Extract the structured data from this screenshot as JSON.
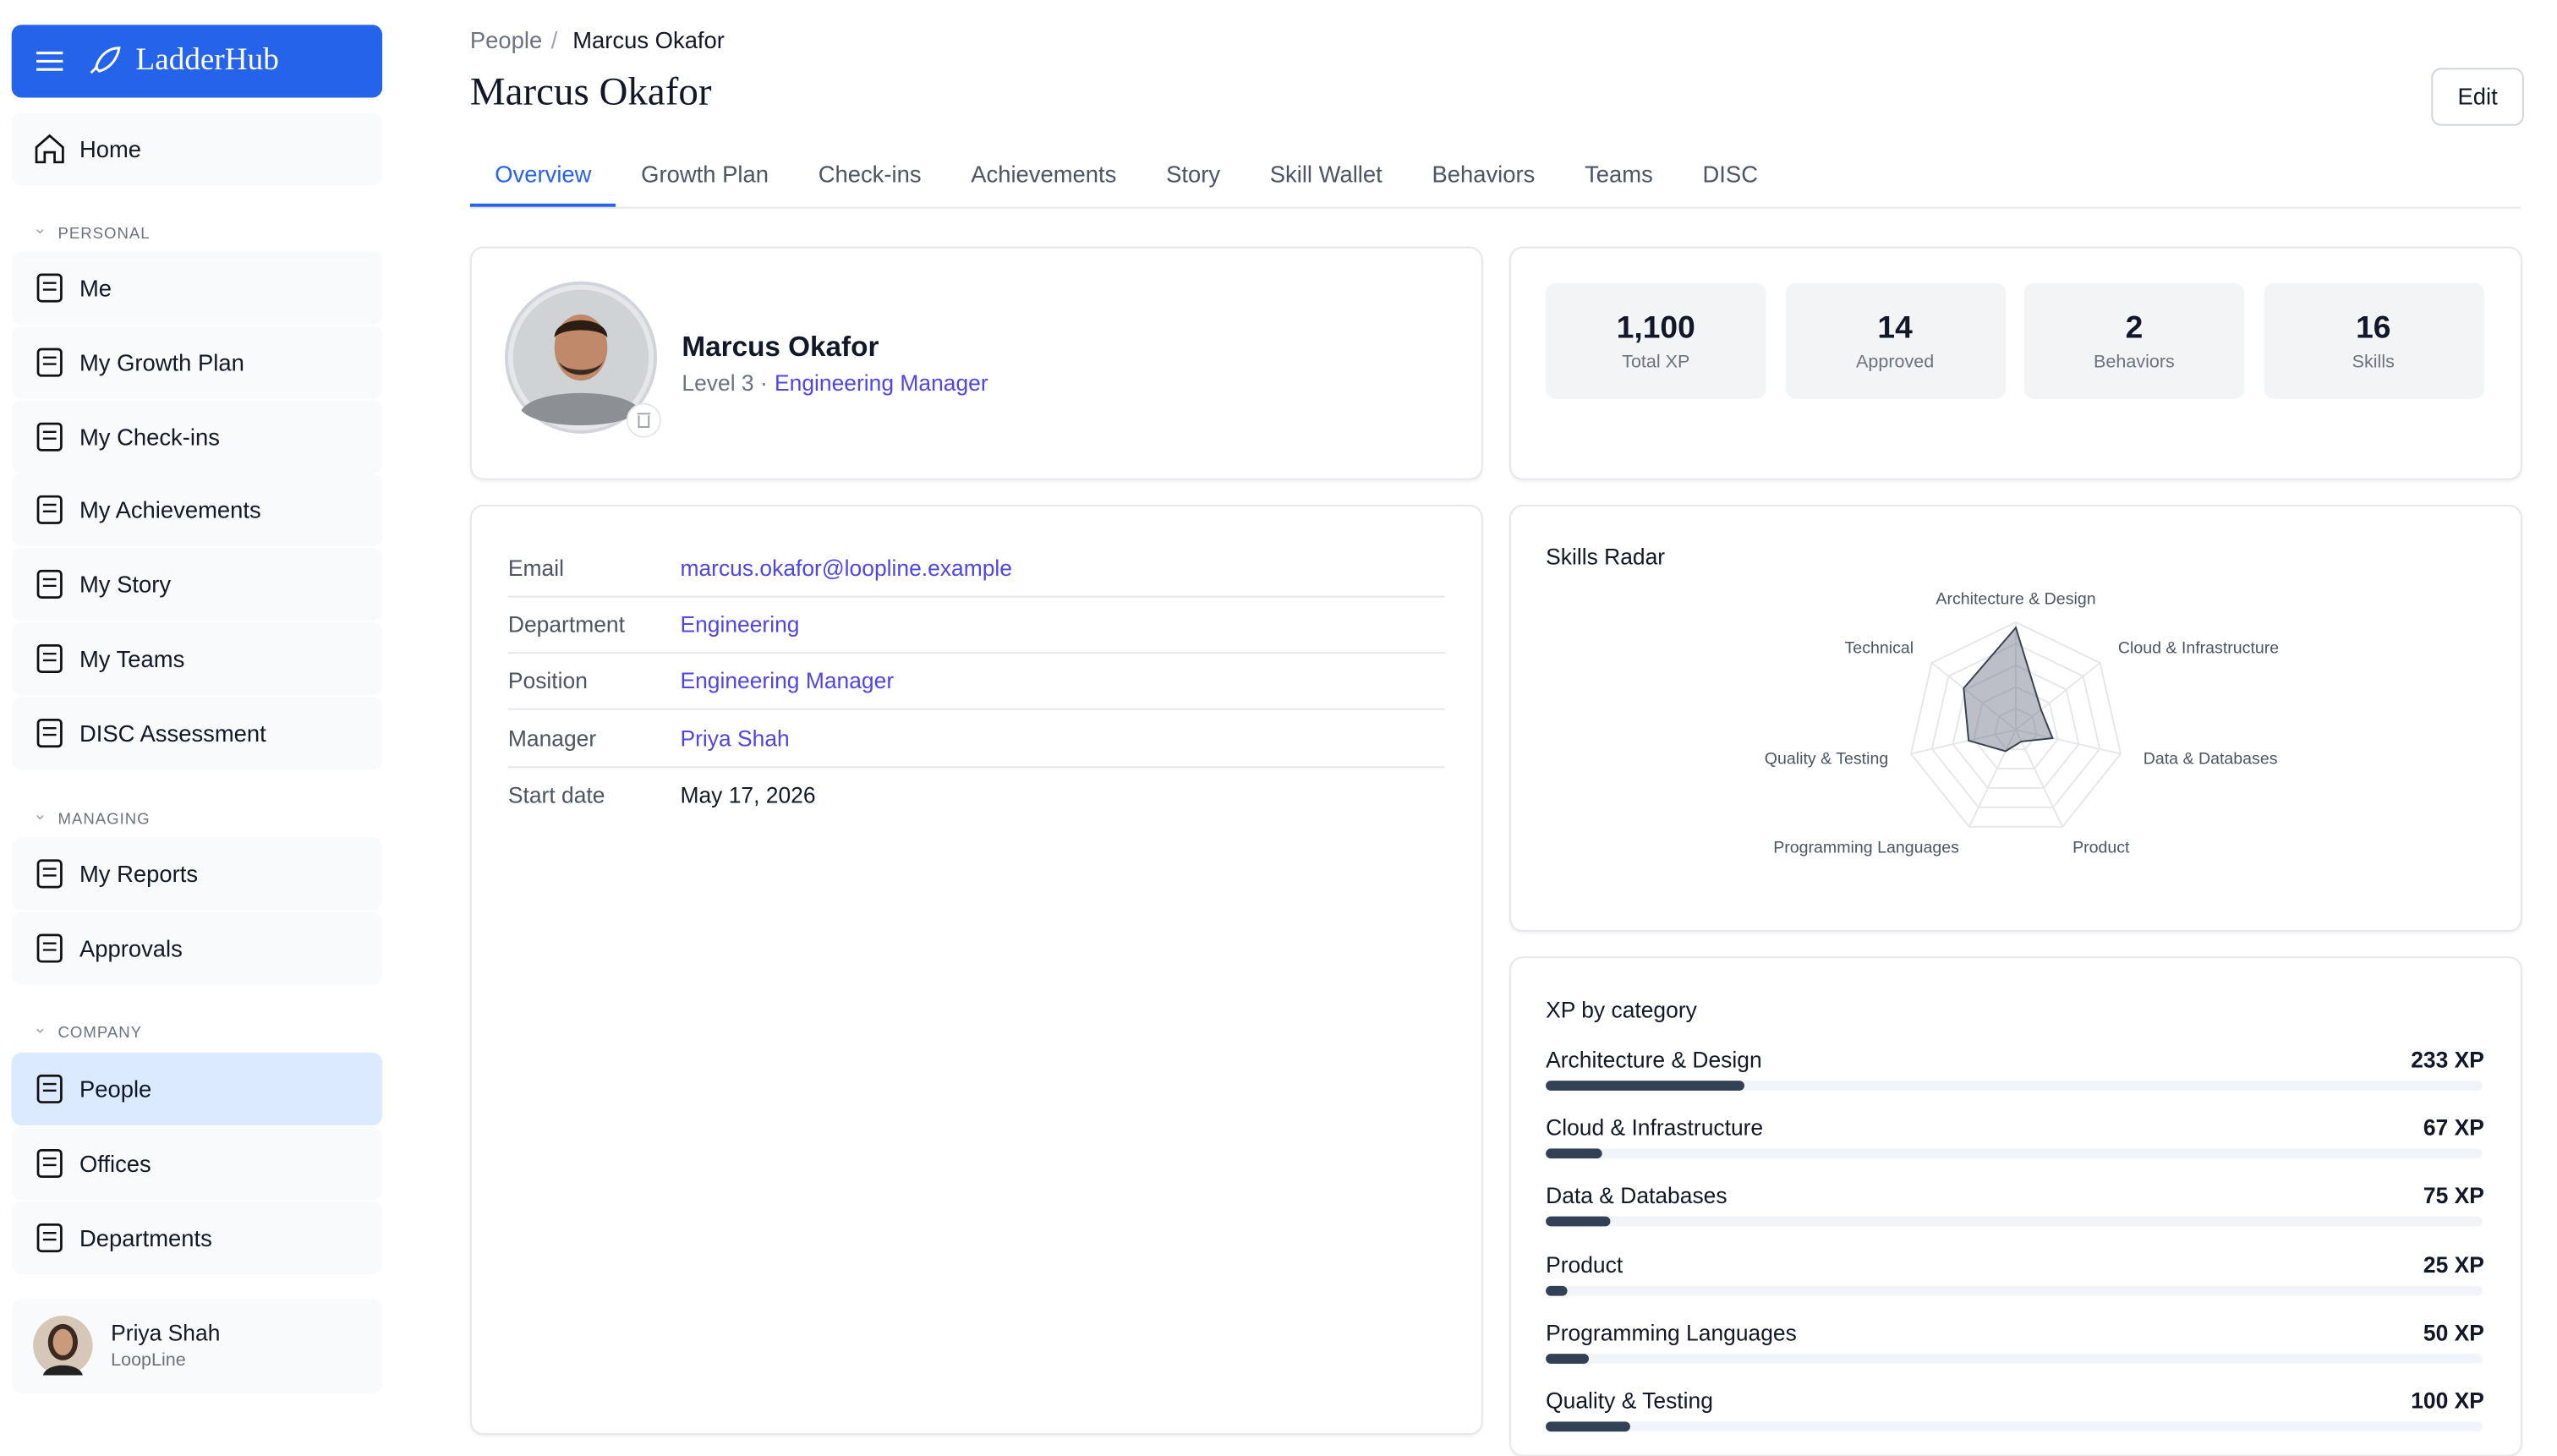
{
  "sidebar": {
    "brand": "LadderHub",
    "home": "Home",
    "sections": [
      {
        "title": "PERSONAL",
        "items": [
          "Me",
          "My Growth Plan",
          "My Check-ins",
          "My Achievements",
          "My Story",
          "My Teams",
          "DISC Assessment"
        ]
      },
      {
        "title": "MANAGING",
        "items": [
          "My Reports",
          "Approvals"
        ]
      },
      {
        "title": "COMPANY",
        "items": [
          "People",
          "Offices",
          "Departments"
        ]
      }
    ],
    "active": "People",
    "user": {
      "name": "Priya Shah",
      "org": "LoopLine"
    }
  },
  "header": {
    "breadcrumb": [
      "People",
      "Marcus Okafor"
    ],
    "title": "Marcus Okafor",
    "edit": "Edit"
  },
  "tabs": {
    "items": [
      "Overview",
      "Growth Plan",
      "Check-ins",
      "Achievements",
      "Story",
      "Skill Wallet",
      "Behaviors",
      "Teams",
      "DISC"
    ],
    "active": "Overview"
  },
  "profile": {
    "name": "Marcus Okafor",
    "level": "Level 3 ·",
    "role": "Engineering Manager"
  },
  "stats": [
    {
      "value": {
        "value": 1100,
        "label": "1,100"
      },
      "label": "Total XP"
    },
    {
      "value": 14,
      "label": "Approved"
    },
    {
      "value": 2,
      "label": "Behaviors"
    },
    {
      "value": 16,
      "label": "Skills"
    }
  ],
  "details": [
    [
      "Email",
      "marcus.okafor@loopline.example"
    ],
    [
      "Department",
      "Engineering"
    ],
    [
      "Position",
      "Engineering Manager"
    ],
    [
      "Manager",
      "Priya Shah"
    ],
    [
      "Start date",
      "May 17, 2026"
    ]
  ],
  "chart_data": [
    {
      "type": "radar",
      "title": "Skills Radar",
      "categories": [
        "Architecture & Design",
        "Cloud & Infrastructure",
        "Data & Databases",
        "Product",
        "Programming Languages",
        "Quality & Testing",
        "Technical"
      ],
      "values": [
        95,
        30,
        35,
        12,
        22,
        45,
        62
      ],
      "rlim": [
        0,
        100
      ],
      "color": "#6b7280"
    },
    {
      "type": "progress",
      "title": "XP by category",
      "categories": [
        "Architecture & Design",
        "Cloud & Infrastructure",
        "Data & Databases",
        "Product",
        "Programming Languages",
        "Quality & Testing"
      ],
      "values": [
        233,
        67,
        75,
        25,
        50,
        100
      ],
      "value_labels": [
        "233 XP",
        "67 XP",
        "75 XP",
        "25 XP",
        "50 XP",
        "100 XP"
      ],
      "xlim": [
        0,
        1100
      ],
      "color": "#334155"
    }
  ]
}
